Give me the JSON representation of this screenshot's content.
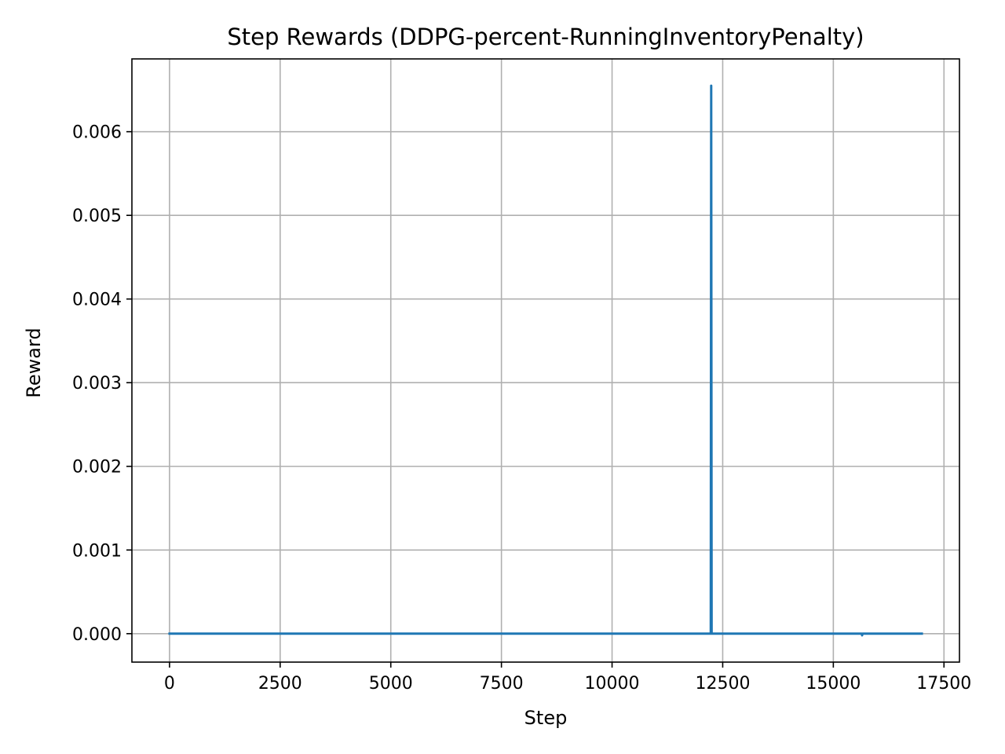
{
  "chart_data": {
    "type": "line",
    "title": "Step Rewards (DDPG-percent-RunningInventoryPenalty)",
    "xlabel": "Step",
    "ylabel": "Reward",
    "xlim": [
      -850,
      17850
    ],
    "ylim": [
      -0.00034,
      0.00687
    ],
    "xticks": [
      0,
      2500,
      5000,
      7500,
      10000,
      12500,
      15000,
      17500
    ],
    "xtick_labels": [
      "0",
      "2500",
      "5000",
      "7500",
      "10000",
      "12500",
      "15000",
      "17500"
    ],
    "yticks": [
      0.0,
      0.001,
      0.002,
      0.003,
      0.004,
      0.005,
      0.006
    ],
    "ytick_labels": [
      "0.000",
      "0.001",
      "0.002",
      "0.003",
      "0.004",
      "0.005",
      "0.006"
    ],
    "grid": true,
    "series": [
      {
        "color": "#1f77b4",
        "x": [
          0,
          12230,
          12240,
          12250,
          12260,
          15640,
          15650,
          15660,
          17000
        ],
        "y": [
          0.0,
          0.0,
          0.00655,
          0.0,
          0.0,
          0.0,
          -2e-05,
          0.0,
          0.0
        ]
      }
    ]
  }
}
